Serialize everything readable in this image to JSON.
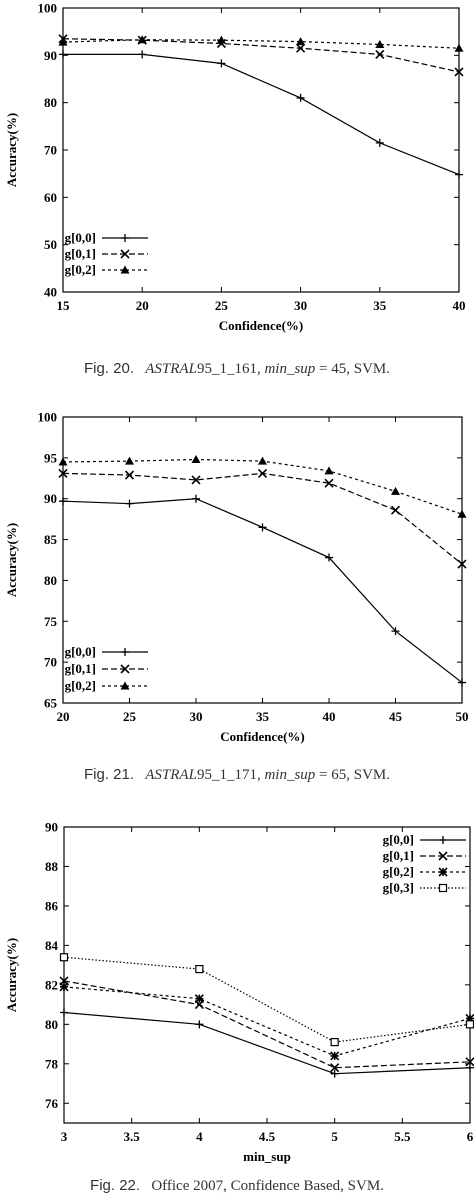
{
  "chart_data": [
    {
      "type": "line",
      "xlabel": "Confidence(%)",
      "ylabel": "Accuracy(%)",
      "x": [
        15,
        20,
        25,
        30,
        35,
        40
      ],
      "xlim": [
        15,
        40
      ],
      "ylim": [
        40,
        100
      ],
      "xticks": [
        15,
        20,
        25,
        30,
        35,
        40
      ],
      "yticks": [
        40,
        50,
        60,
        70,
        80,
        90,
        100
      ],
      "legend_position": "bottom-left",
      "grid": false,
      "series": [
        {
          "name": "g[0,0]",
          "marker": "plus",
          "dash": "solid",
          "values": [
            90.2,
            90.2,
            88.3,
            81.0,
            71.5,
            64.8
          ]
        },
        {
          "name": "g[0,1]",
          "marker": "x",
          "dash": "dashed",
          "values": [
            93.5,
            93.2,
            92.5,
            91.5,
            90.2,
            86.5
          ]
        },
        {
          "name": "g[0,2]",
          "marker": "triangle",
          "dash": "dotted",
          "values": [
            92.8,
            93.3,
            93.2,
            92.9,
            92.3,
            91.5
          ]
        }
      ]
    },
    {
      "type": "line",
      "xlabel": "Confidence(%)",
      "ylabel": "Accuracy(%)",
      "x": [
        20,
        25,
        30,
        35,
        40,
        45,
        50
      ],
      "xlim": [
        20,
        50
      ],
      "ylim": [
        65,
        100
      ],
      "xticks": [
        20,
        25,
        30,
        35,
        40,
        45,
        50
      ],
      "yticks": [
        65,
        70,
        75,
        80,
        85,
        90,
        95,
        100
      ],
      "legend_position": "bottom-left",
      "grid": false,
      "series": [
        {
          "name": "g[0,0]",
          "marker": "plus",
          "dash": "solid",
          "values": [
            89.7,
            89.4,
            90.0,
            86.5,
            82.8,
            73.8,
            67.5
          ]
        },
        {
          "name": "g[0,1]",
          "marker": "x",
          "dash": "dashed",
          "values": [
            93.1,
            92.9,
            92.3,
            93.1,
            91.9,
            88.6,
            82.0
          ]
        },
        {
          "name": "g[0,2]",
          "marker": "triangle",
          "dash": "dotted",
          "values": [
            94.5,
            94.6,
            94.8,
            94.6,
            93.4,
            90.9,
            88.1
          ]
        }
      ]
    },
    {
      "type": "line",
      "xlabel": "min_sup",
      "ylabel": "Accuracy(%)",
      "x": [
        3,
        4,
        5,
        6
      ],
      "xlim": [
        3,
        6
      ],
      "ylim": [
        75,
        90
      ],
      "xticks": [
        3,
        3.5,
        4,
        4.5,
        5,
        5.5,
        6
      ],
      "yticks": [
        76,
        78,
        80,
        82,
        84,
        86,
        88,
        90
      ],
      "legend_position": "top-right",
      "grid": false,
      "series": [
        {
          "name": "g[0,0]",
          "marker": "plus",
          "dash": "solid",
          "values": [
            80.6,
            80.0,
            77.5,
            77.8
          ]
        },
        {
          "name": "g[0,1]",
          "marker": "x",
          "dash": "dashed",
          "values": [
            82.2,
            81.0,
            77.8,
            78.1
          ]
        },
        {
          "name": "g[0,2]",
          "marker": "star",
          "dash": "dotted",
          "values": [
            81.9,
            81.3,
            78.4,
            80.3
          ]
        },
        {
          "name": "g[0,3]",
          "marker": "square",
          "dash": "finedot",
          "values": [
            83.4,
            82.8,
            79.1,
            80.0
          ]
        }
      ]
    }
  ],
  "captions": [
    {
      "label": "Fig. 20.",
      "dataset": "ASTRAL",
      "dataset_rest": "95_1_161,",
      "param": "min_sup",
      "eq": " = 45,",
      "tail": " SVM."
    },
    {
      "label": "Fig. 21.",
      "dataset": "ASTRAL",
      "dataset_rest": "95_1_171,",
      "param": "min_sup",
      "eq": " = 65,",
      "tail": " SVM."
    },
    {
      "label": "Fig. 22.",
      "dataset": "",
      "dataset_rest": "",
      "param": "",
      "eq": "",
      "tail": "Office 2007, Confidence Based, SVM."
    }
  ]
}
